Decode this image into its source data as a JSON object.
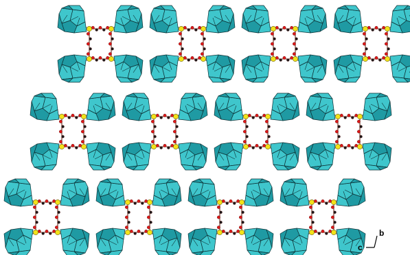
{
  "figure": {
    "rows": [
      {
        "cells": 4
      },
      {
        "cells": 4
      },
      {
        "cells": 4
      }
    ],
    "colors": {
      "polyhedron_fill": "#3fc6cc",
      "polyhedron_shade": "#1f9aa3",
      "polyhedron_edge": "#0d2f33",
      "metal_atom": "#f2e21a",
      "oxygen_atom": "#e01818",
      "carbon_atom": "#1a1a1a",
      "bond": "#6b2a1a"
    }
  },
  "axes": {
    "label_b": "b",
    "label_c": "c"
  }
}
